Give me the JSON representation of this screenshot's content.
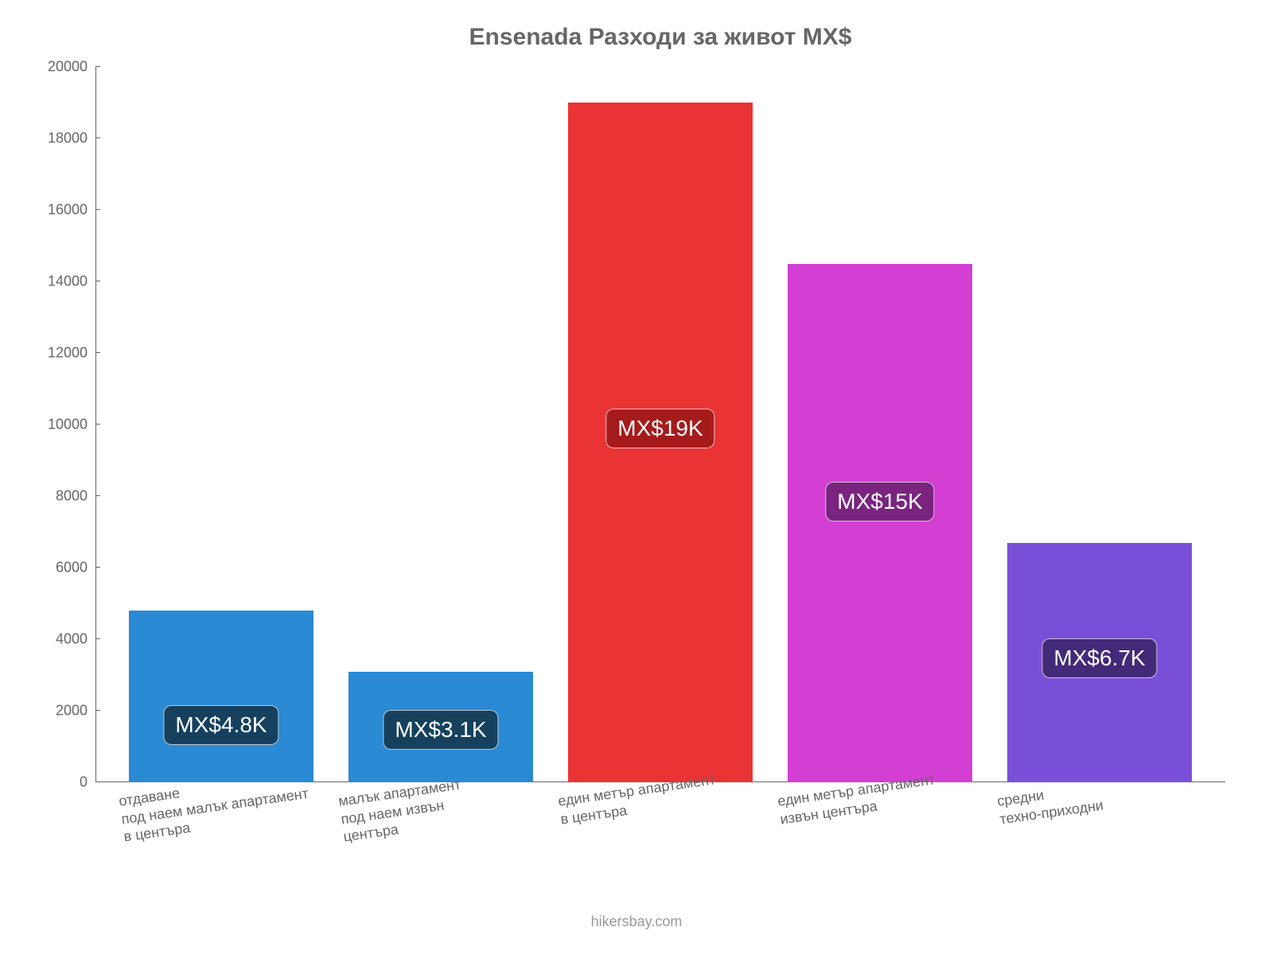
{
  "chart": {
    "type": "bar",
    "title": "Ensenada Разходи за живот MX$",
    "title_fontsize": 30,
    "title_color": "#666666",
    "background_color": "#ffffff",
    "axis_color": "#666666",
    "label_color": "#666666",
    "label_fontsize": 18,
    "value_badge_fontsize": 28,
    "bar_width_ratio": 0.84,
    "ylim": [
      0,
      20000
    ],
    "ytick_step": 2000,
    "yticks": [
      {
        "value": 0,
        "label": "0"
      },
      {
        "value": 2000,
        "label": "2000"
      },
      {
        "value": 4000,
        "label": "4000"
      },
      {
        "value": 6000,
        "label": "6000"
      },
      {
        "value": 8000,
        "label": "8000"
      },
      {
        "value": 10000,
        "label": "10000"
      },
      {
        "value": 12000,
        "label": "12000"
      },
      {
        "value": 14000,
        "label": "14000"
      },
      {
        "value": 16000,
        "label": "16000"
      },
      {
        "value": 18000,
        "label": "18000"
      },
      {
        "value": 20000,
        "label": "20000"
      }
    ],
    "bars": [
      {
        "category": "отдаване\nпод наем малък апартамент\nв центъра",
        "value": 4800,
        "display_value": "MX$4.8K",
        "color": "#2a8ad4",
        "badge_bg": "#15415f",
        "badge_offset_pct": 55
      },
      {
        "category": "малък апартамент\nпод наем извън\nцентъра",
        "value": 3100,
        "display_value": "MX$3.1K",
        "color": "#2a8ad4",
        "badge_bg": "#15415f",
        "badge_offset_pct": 35
      },
      {
        "category": "един метър апартамент\nв центъра",
        "value": 19000,
        "display_value": "MX$19K",
        "color": "#ea3434",
        "badge_bg": "#a51b1b",
        "badge_offset_pct": 45
      },
      {
        "category": "един метър апартамент\nизвън центъра",
        "value": 14500,
        "display_value": "MX$15K",
        "color": "#d23fd2",
        "badge_bg": "#7a2480",
        "badge_offset_pct": 42
      },
      {
        "category": "средни\nтехно-приходни",
        "value": 6700,
        "display_value": "MX$6.7K",
        "color": "#7a4fd8",
        "badge_bg": "#432a78",
        "badge_offset_pct": 40
      }
    ],
    "credit": "hikersbay.com",
    "credit_color": "#999999"
  }
}
